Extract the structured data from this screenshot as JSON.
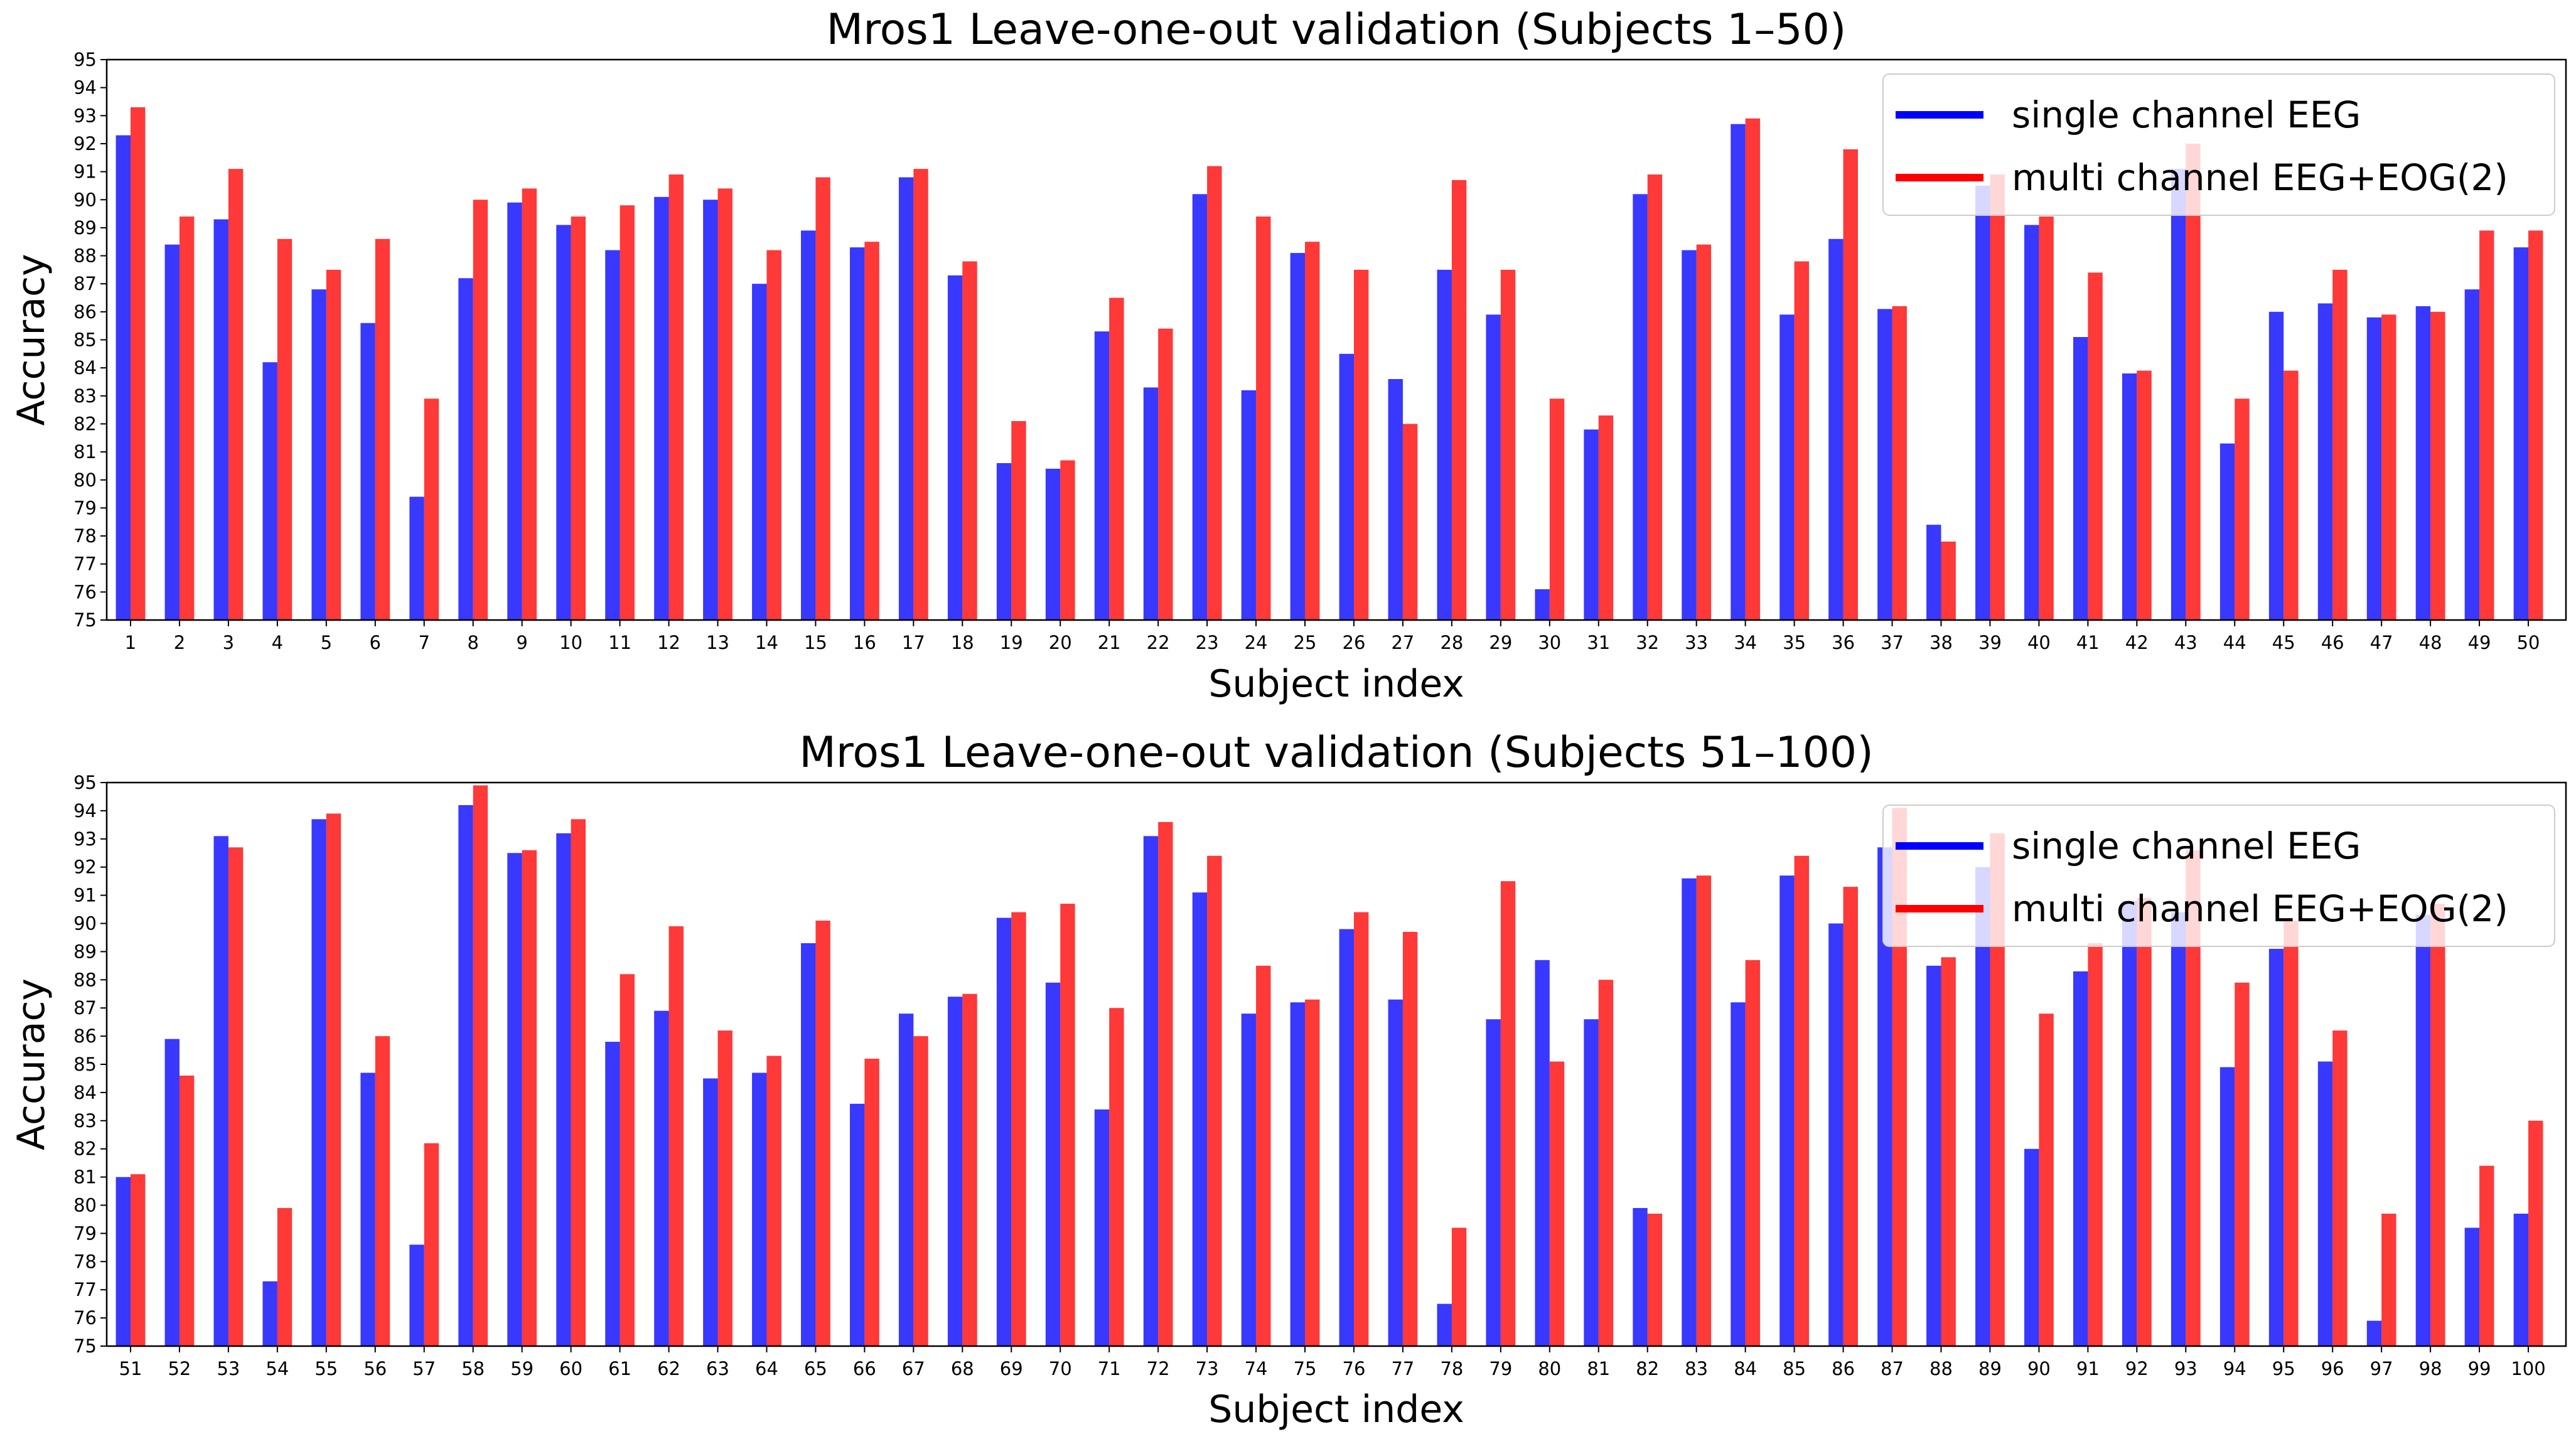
{
  "colors": {
    "single": "#0000ff",
    "multi": "#ff0000"
  },
  "chart_data": [
    {
      "type": "bar",
      "title": "Mros1 Leave-one-out validation (Subjects 1–50)",
      "xlabel": "Subject index",
      "ylabel": "Accuracy",
      "ylim": [
        75,
        95
      ],
      "yticks": [
        75,
        76,
        77,
        78,
        79,
        80,
        81,
        82,
        83,
        84,
        85,
        86,
        87,
        88,
        89,
        90,
        91,
        92,
        93,
        94,
        95
      ],
      "legend_position": "top-right",
      "categories": [
        "1",
        "2",
        "3",
        "4",
        "5",
        "6",
        "7",
        "8",
        "9",
        "10",
        "11",
        "12",
        "13",
        "14",
        "15",
        "16",
        "17",
        "18",
        "19",
        "20",
        "21",
        "22",
        "23",
        "24",
        "25",
        "26",
        "27",
        "28",
        "29",
        "30",
        "31",
        "32",
        "33",
        "34",
        "35",
        "36",
        "37",
        "38",
        "39",
        "40",
        "41",
        "42",
        "43",
        "44",
        "45",
        "46",
        "47",
        "48",
        "49",
        "50"
      ],
      "series": [
        {
          "name": "single channel EEG",
          "color": "#0000ff",
          "values": [
            92.3,
            88.4,
            89.3,
            84.2,
            86.8,
            85.6,
            79.4,
            87.2,
            89.9,
            89.1,
            88.2,
            90.1,
            90.0,
            87.0,
            88.9,
            88.3,
            90.8,
            87.3,
            80.6,
            80.4,
            85.3,
            83.3,
            90.2,
            83.2,
            88.1,
            84.5,
            83.6,
            87.5,
            85.9,
            76.1,
            81.8,
            90.2,
            88.2,
            92.7,
            85.9,
            88.6,
            86.1,
            78.4,
            90.5,
            89.1,
            85.1,
            83.8,
            91.1,
            81.3,
            86.0,
            86.3,
            85.8,
            86.2,
            86.8,
            88.3
          ]
        },
        {
          "name": "multi channel EEG+EOG(2)",
          "color": "#ff0000",
          "values": [
            93.3,
            89.4,
            91.1,
            88.6,
            87.5,
            88.6,
            82.9,
            90.0,
            90.4,
            89.4,
            89.8,
            90.9,
            90.4,
            88.2,
            90.8,
            88.5,
            91.1,
            87.8,
            82.1,
            80.7,
            86.5,
            85.4,
            91.2,
            89.4,
            88.5,
            87.5,
            82.0,
            90.7,
            87.5,
            82.9,
            82.3,
            90.9,
            88.4,
            92.9,
            87.8,
            91.8,
            86.2,
            77.8,
            90.9,
            89.4,
            87.4,
            83.9,
            92.0,
            82.9,
            83.9,
            87.5,
            85.9,
            86.0,
            88.9,
            88.9
          ]
        }
      ]
    },
    {
      "type": "bar",
      "title": "Mros1 Leave-one-out validation (Subjects 51–100)",
      "xlabel": "Subject index",
      "ylabel": "Accuracy",
      "ylim": [
        75,
        95
      ],
      "yticks": [
        75,
        76,
        77,
        78,
        79,
        80,
        81,
        82,
        83,
        84,
        85,
        86,
        87,
        88,
        89,
        90,
        91,
        92,
        93,
        94,
        95
      ],
      "legend_position": "top-right",
      "categories": [
        "51",
        "52",
        "53",
        "54",
        "55",
        "56",
        "57",
        "58",
        "59",
        "60",
        "61",
        "62",
        "63",
        "64",
        "65",
        "66",
        "67",
        "68",
        "69",
        "70",
        "71",
        "72",
        "73",
        "74",
        "75",
        "76",
        "77",
        "78",
        "79",
        "80",
        "81",
        "82",
        "83",
        "84",
        "85",
        "86",
        "87",
        "88",
        "89",
        "90",
        "91",
        "92",
        "93",
        "94",
        "95",
        "96",
        "97",
        "98",
        "99",
        "100"
      ],
      "series": [
        {
          "name": "single channel EEG",
          "color": "#0000ff",
          "values": [
            81.0,
            85.9,
            93.1,
            77.3,
            93.7,
            84.7,
            78.6,
            94.2,
            92.5,
            93.2,
            85.8,
            86.9,
            84.5,
            84.7,
            89.3,
            83.6,
            86.8,
            87.4,
            90.2,
            87.9,
            83.4,
            93.1,
            91.1,
            86.8,
            87.2,
            89.8,
            87.3,
            76.5,
            86.6,
            88.7,
            86.6,
            79.9,
            91.6,
            87.2,
            91.7,
            90.0,
            92.7,
            88.5,
            92.0,
            82.0,
            88.3,
            90.8,
            90.4,
            84.9,
            89.1,
            85.1,
            75.9,
            90.3,
            79.2,
            79.7
          ]
        },
        {
          "name": "multi channel EEG+EOG(2)",
          "color": "#ff0000",
          "values": [
            81.1,
            84.6,
            92.7,
            79.9,
            93.9,
            86.0,
            82.2,
            94.9,
            92.6,
            93.7,
            88.2,
            89.9,
            86.2,
            85.3,
            90.1,
            85.2,
            86.0,
            87.5,
            90.4,
            90.7,
            87.0,
            93.6,
            92.4,
            88.5,
            87.3,
            90.4,
            89.7,
            79.2,
            91.5,
            85.1,
            88.0,
            79.7,
            91.7,
            88.7,
            92.4,
            91.3,
            94.1,
            88.8,
            93.2,
            86.8,
            89.3,
            90.9,
            92.6,
            87.9,
            90.1,
            86.2,
            79.7,
            90.7,
            81.4,
            83.0
          ]
        }
      ]
    }
  ]
}
